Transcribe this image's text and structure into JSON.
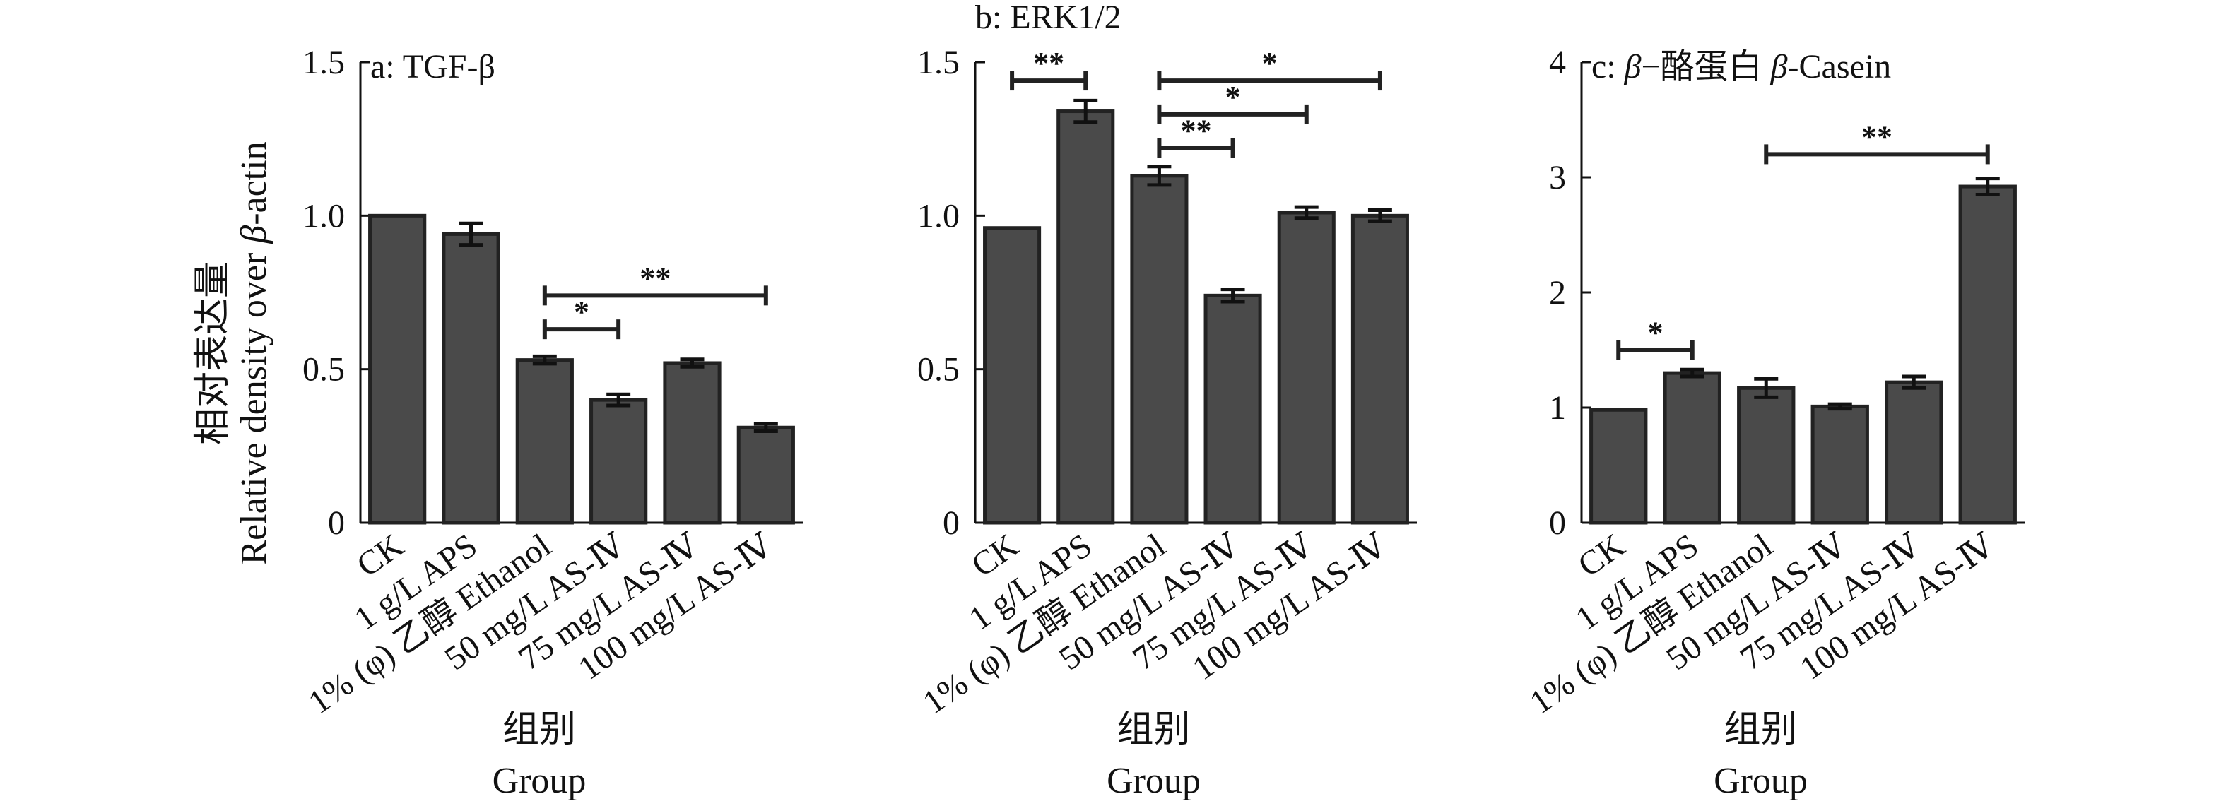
{
  "y_axis_title_zh": "相对表达量",
  "y_axis_title_en_prefix": "Relative density over ",
  "y_axis_title_en_beta": "β",
  "y_axis_title_en_suffix": "-actin",
  "x_axis_title_zh": "组别",
  "x_axis_title_en": "Group",
  "colors": {
    "bar_fill": "#4a4a4a",
    "bar_edge": "#222222",
    "axis": "#111111"
  },
  "chart_data": [
    {
      "type": "bar",
      "title": "a: TGF-β",
      "title_parts": [
        {
          "text": "a: TGF-β",
          "italic": false
        }
      ],
      "categories": [
        "CK",
        "1 g/L APS",
        "1% (φ) 乙醇 Ethanol",
        "50 mg/L AS-Ⅳ",
        "75 mg/L AS-Ⅳ",
        "100 mg/L AS-Ⅳ"
      ],
      "values": [
        1.0,
        0.94,
        0.53,
        0.4,
        0.52,
        0.31
      ],
      "errors": [
        0.0,
        0.035,
        0.012,
        0.018,
        0.012,
        0.012
      ],
      "ylim": [
        0,
        1.5
      ],
      "yticks": [
        0,
        0.5,
        1.0,
        1.5
      ],
      "ytick_labels": [
        "0",
        "0.5",
        "1.0",
        "1.5"
      ],
      "significance": [
        {
          "from": 2,
          "to": 3,
          "y": 0.63,
          "label": "*"
        },
        {
          "from": 2,
          "to": 5,
          "y": 0.74,
          "label": "**"
        }
      ]
    },
    {
      "type": "bar",
      "title": "b: ERK1/2",
      "title_parts": [
        {
          "text": "b: ERK1/2",
          "italic": false
        }
      ],
      "categories": [
        "CK",
        "1 g/L APS",
        "1% (φ) 乙醇 Ethanol",
        "50 mg/L AS-Ⅳ",
        "75 mg/L AS-Ⅳ",
        "100 mg/L AS-Ⅳ"
      ],
      "values": [
        0.96,
        1.34,
        1.13,
        0.74,
        1.01,
        1.0
      ],
      "errors": [
        0.0,
        0.035,
        0.03,
        0.02,
        0.018,
        0.018
      ],
      "ylim": [
        0,
        1.5
      ],
      "yticks": [
        0,
        0.5,
        1.0,
        1.5
      ],
      "ytick_labels": [
        "0",
        "0.5",
        "1.0",
        "1.5"
      ],
      "significance": [
        {
          "from": 0,
          "to": 1,
          "y": 1.44,
          "label": "**"
        },
        {
          "from": 2,
          "to": 5,
          "y": 1.44,
          "label": "*"
        },
        {
          "from": 2,
          "to": 4,
          "y": 1.33,
          "label": "*"
        },
        {
          "from": 2,
          "to": 3,
          "y": 1.22,
          "label": "**"
        }
      ]
    },
    {
      "type": "bar",
      "title": "c: β−酪蛋白 β-Casein",
      "title_parts": [
        {
          "text": "c: ",
          "italic": false
        },
        {
          "text": "β",
          "italic": true
        },
        {
          "text": "−酪蛋白 ",
          "italic": false
        },
        {
          "text": "β",
          "italic": true
        },
        {
          "text": "-Casein",
          "italic": false
        }
      ],
      "categories": [
        "CK",
        "1 g/L APS",
        "1% (φ) 乙醇 Ethanol",
        "50 mg/L AS-Ⅳ",
        "75 mg/L AS-Ⅳ",
        "100 mg/L AS-Ⅳ"
      ],
      "values": [
        0.98,
        1.3,
        1.17,
        1.01,
        1.22,
        2.92
      ],
      "errors": [
        0.0,
        0.03,
        0.08,
        0.02,
        0.05,
        0.07
      ],
      "ylim": [
        0,
        4
      ],
      "yticks": [
        0,
        1,
        2,
        3,
        4
      ],
      "ytick_labels": [
        "0",
        "1",
        "2",
        "3",
        "4"
      ],
      "significance": [
        {
          "from": 0,
          "to": 1,
          "y": 1.5,
          "label": "*"
        },
        {
          "from": 2,
          "to": 5,
          "y": 3.2,
          "label": "**"
        }
      ]
    }
  ]
}
